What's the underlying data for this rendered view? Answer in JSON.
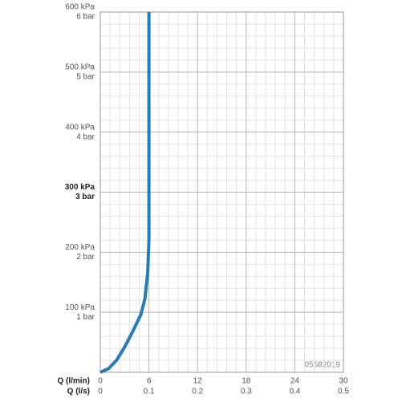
{
  "chart_data": {
    "type": "line",
    "x": [
      0,
      1,
      2,
      3,
      4,
      5,
      5.5,
      5.85,
      6,
      6
    ],
    "series": [
      {
        "color": "#2a7ab4",
        "values": [
          0,
          6,
          20,
          42,
          68,
          96,
          122,
          166,
          220,
          600
        ]
      }
    ],
    "xlabel": "Q (l/min)",
    "x2label": "Q (l/s)",
    "xlim": [
      0,
      30
    ],
    "xticks": [
      0,
      6,
      12,
      18,
      24,
      30
    ],
    "x2lim": [
      0,
      0.5
    ],
    "x2ticks": [
      0,
      0.1,
      0.2,
      0.3,
      0.4,
      0.5
    ],
    "ylim": [
      0,
      600
    ],
    "yticks": [
      {
        "value": 100,
        "label": "100 kPa"
      },
      {
        "value": 200,
        "label": "200 kPa"
      },
      {
        "value": 300,
        "label": "300 kPa"
      },
      {
        "value": 400,
        "label": "400 kPa"
      },
      {
        "value": 500,
        "label": "500 kPa"
      },
      {
        "value": 600,
        "label": "600 kPa"
      }
    ],
    "ytick_bar_labels": [
      "1 bar",
      "2 bar",
      "3 bar",
      "4 bar",
      "5 bar",
      "6 bar"
    ],
    "highlight_ytick": 300,
    "minor_divisions": 5,
    "annotation": "05682019",
    "grid": true
  }
}
